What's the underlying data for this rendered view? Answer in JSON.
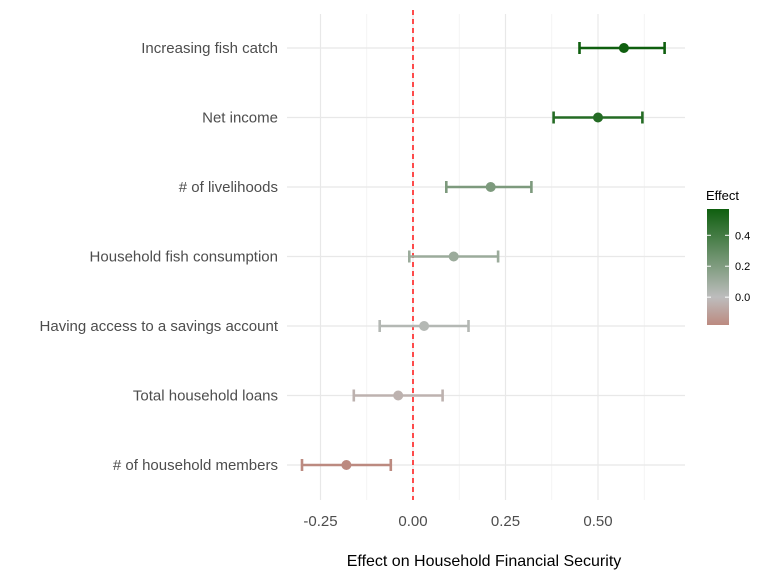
{
  "chart_data": {
    "type": "forest",
    "title": "",
    "xlabel": "Effect on Household Financial Security",
    "ylabel": "",
    "xlim": [
      -0.33,
      0.74
    ],
    "x_ticks": [
      -0.25,
      0.0,
      0.25,
      0.5
    ],
    "x_tick_labels": [
      "-0.25",
      "0.00",
      "0.25",
      "0.50"
    ],
    "reference_line": {
      "x": 0.0,
      "style": "dashed",
      "color": "#ff0000"
    },
    "grid": true,
    "categories": [
      "Increasing fish catch",
      "Net income",
      "# of livelihoods",
      "Household fish consumption",
      "Having access to a savings account",
      "Total household loans",
      "# of household members"
    ],
    "estimates": [
      0.57,
      0.5,
      0.21,
      0.11,
      0.03,
      -0.04,
      -0.18
    ],
    "ci_low": [
      0.45,
      0.38,
      0.09,
      -0.01,
      -0.09,
      -0.16,
      -0.3
    ],
    "ci_high": [
      0.68,
      0.62,
      0.32,
      0.23,
      0.15,
      0.08,
      -0.06
    ],
    "legend": {
      "title": "Effect",
      "position": "right",
      "ticks": [
        0.0,
        0.2,
        0.4
      ],
      "tick_labels": [
        "0.0",
        "0.2",
        "0.4"
      ],
      "range": [
        -0.18,
        0.57
      ],
      "colors": {
        "low": "#bc8a80",
        "mid": "#bdbdbd",
        "high": "#0f5f0f"
      }
    }
  }
}
